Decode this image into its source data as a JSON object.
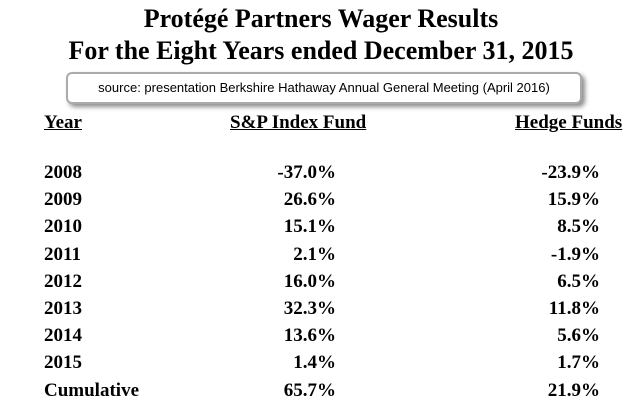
{
  "title_line1": "Protégé Partners Wager Results",
  "title_line2": "For the Eight Years ended December 31, 2015",
  "source_note": "source: presentation Berkshire Hathaway Annual General Meeting (April 2016)",
  "chart_data": {
    "type": "table",
    "title": "Protégé Partners Wager Results For the Eight Years ended December 31, 2015",
    "columns": [
      "Year",
      "S&P Index Fund",
      "Hedge Funds"
    ],
    "rows": [
      {
        "year": "2008",
        "sp": "-37.0%",
        "hf": "-23.9%"
      },
      {
        "year": "2009",
        "sp": "26.6%",
        "hf": "15.9%"
      },
      {
        "year": "2010",
        "sp": "15.1%",
        "hf": "8.5%"
      },
      {
        "year": "2011",
        "sp": "2.1%",
        "hf": "-1.9%"
      },
      {
        "year": "2012",
        "sp": "16.0%",
        "hf": "6.5%"
      },
      {
        "year": "2013",
        "sp": "32.3%",
        "hf": "11.8%"
      },
      {
        "year": "2014",
        "sp": "13.6%",
        "hf": "5.6%"
      },
      {
        "year": "2015",
        "sp": "1.4%",
        "hf": "1.7%"
      },
      {
        "year": "Cumulative",
        "sp": "65.7%",
        "hf": "21.9%"
      }
    ]
  }
}
